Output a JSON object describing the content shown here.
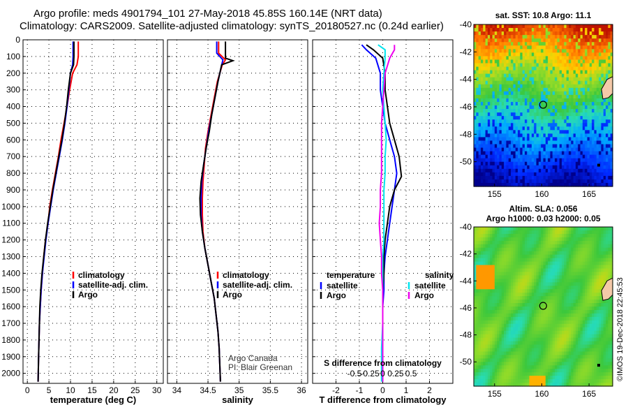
{
  "title_line1": "Argo profile: meds 4901794_101 27-May-2018 45.85S 160.14E (NRT data)",
  "title_line2": "Climatology: CARS2009. Satellite-adjusted climatology: synTS_20180527.nc (0.24d earlier)",
  "credit_line1": "Argo Canada",
  "credit_line2": "PI: Blair Greenan",
  "watermark": "©IMOS 19-Dec-2018 22:45:53",
  "colors": {
    "argo": "#000000",
    "climatology": "#ff0000",
    "satellite_t": "#0000ff",
    "satellite_s": "#00e5ee",
    "argo_s_diff": "#ee00ee"
  },
  "chart_data": [
    {
      "type": "line",
      "id": "temperature",
      "xlabel": "temperature (deg C)",
      "ylim": [
        2060,
        0
      ],
      "xlim": [
        -1,
        31.5
      ],
      "xticks": [
        0,
        5,
        10,
        15,
        20,
        25,
        30
      ],
      "yticks": [
        0,
        100,
        200,
        300,
        400,
        500,
        600,
        700,
        800,
        900,
        1000,
        1100,
        1200,
        1300,
        1400,
        1500,
        1600,
        1700,
        1800,
        1900,
        2000
      ],
      "legend": [
        "climatology",
        "satellite-adj. clim.",
        "Argo"
      ],
      "series": [
        {
          "name": "climatology",
          "color": "red",
          "x": [
            11.8,
            11.8,
            11.5,
            10.5,
            9.8,
            9.2,
            8.5,
            7.8,
            7.2,
            6.5,
            5.8,
            5.2,
            4.8,
            4.2,
            3.8,
            3.5,
            3.2,
            3.0,
            2.8,
            2.7,
            2.6,
            2.5
          ],
          "y": [
            10,
            100,
            150,
            200,
            300,
            400,
            500,
            600,
            700,
            800,
            900,
            1000,
            1100,
            1200,
            1300,
            1400,
            1500,
            1600,
            1700,
            1800,
            1900,
            2050
          ]
        },
        {
          "name": "satellite-adj. clim.",
          "color": "blue",
          "x": [
            10.6,
            10.6,
            10.5,
            10.0,
            9.6,
            9.2,
            8.7,
            8.1,
            7.4,
            6.7,
            6.0,
            5.4,
            4.8,
            4.3,
            3.9,
            3.5,
            3.2,
            3.0,
            2.8,
            2.7,
            2.6,
            2.5
          ],
          "y": [
            10,
            100,
            150,
            200,
            300,
            400,
            500,
            600,
            700,
            800,
            900,
            1000,
            1100,
            1200,
            1300,
            1400,
            1500,
            1600,
            1700,
            1800,
            1900,
            2050
          ]
        },
        {
          "name": "Argo",
          "color": "black",
          "x": [
            10.8,
            10.8,
            10.7,
            10.0,
            9.5,
            9.1,
            8.6,
            8.0,
            7.3,
            6.6,
            5.9,
            5.3,
            4.7,
            4.2,
            3.8,
            3.4,
            3.1,
            2.9,
            2.8,
            2.7,
            2.6,
            2.5
          ],
          "y": [
            10,
            100,
            150,
            200,
            300,
            400,
            500,
            600,
            700,
            800,
            900,
            1000,
            1100,
            1200,
            1300,
            1400,
            1500,
            1600,
            1700,
            1800,
            1900,
            2050
          ]
        }
      ]
    },
    {
      "type": "line",
      "id": "salinity",
      "xlabel": "salinity",
      "ylim": [
        2060,
        0
      ],
      "xlim": [
        33.85,
        36.1
      ],
      "xticks": [
        34,
        34.5,
        35,
        35.5,
        36
      ],
      "legend": [
        "climatology",
        "satellite-adj. clim.",
        "Argo"
      ],
      "series": [
        {
          "name": "climatology",
          "color": "red",
          "x": [
            34.67,
            34.67,
            34.78,
            34.73,
            34.65,
            34.6,
            34.55,
            34.5,
            34.46,
            34.44,
            34.42,
            34.41,
            34.41,
            34.42,
            34.45,
            34.5,
            34.55,
            34.6,
            34.63,
            34.66,
            34.68,
            34.7
          ],
          "y": [
            10,
            80,
            120,
            150,
            250,
            350,
            450,
            550,
            650,
            750,
            850,
            950,
            1050,
            1150,
            1250,
            1350,
            1450,
            1550,
            1650,
            1750,
            1850,
            2050
          ]
        },
        {
          "name": "satellite-adj. clim.",
          "color": "blue",
          "x": [
            34.64,
            34.64,
            34.74,
            34.72,
            34.66,
            34.61,
            34.56,
            34.51,
            34.47,
            34.43,
            34.4,
            34.39,
            34.39,
            34.41,
            34.45,
            34.5,
            34.55,
            34.6,
            34.63,
            34.66,
            34.68,
            34.7
          ],
          "y": [
            10,
            80,
            120,
            150,
            250,
            350,
            450,
            550,
            650,
            750,
            850,
            950,
            1050,
            1150,
            1250,
            1350,
            1450,
            1550,
            1650,
            1750,
            1850,
            2050
          ]
        },
        {
          "name": "Argo",
          "color": "black",
          "x": [
            34.78,
            34.78,
            34.9,
            34.72,
            34.66,
            34.61,
            34.56,
            34.52,
            34.47,
            34.43,
            34.39,
            34.37,
            34.38,
            34.41,
            34.45,
            34.5,
            34.55,
            34.6,
            34.63,
            34.66,
            34.68,
            34.7
          ],
          "y": [
            10,
            110,
            125,
            150,
            250,
            350,
            450,
            550,
            650,
            750,
            850,
            950,
            1050,
            1150,
            1250,
            1350,
            1450,
            1550,
            1650,
            1750,
            1850,
            2050
          ]
        }
      ]
    },
    {
      "type": "line",
      "id": "difference",
      "xlabel": "T difference from climatology",
      "xlabel2": "S difference from climatology",
      "s_ticks": [
        "-0.5",
        "-0.25",
        "0",
        "0.25",
        "0.5"
      ],
      "ylim": [
        2060,
        0
      ],
      "xlim": [
        -3,
        3
      ],
      "xticks": [
        -2,
        -1,
        0,
        1,
        2
      ],
      "legend_t_title": "temperature",
      "legend_s_title": "salinity",
      "legend_t": [
        "satellite",
        "Argo"
      ],
      "legend_s": [
        "satellite",
        "Argo"
      ],
      "series": [
        {
          "name": "T satellite",
          "color": "blue",
          "x": [
            -0.9,
            -0.7,
            -0.3,
            -0.1,
            -0.1,
            0.0,
            0.1,
            0.3,
            0.5,
            0.6,
            0.5,
            0.4,
            0.3,
            0.2,
            0.1,
            0.05,
            0.05,
            0.0,
            0.0,
            0.0,
            0.0
          ],
          "y": [
            30,
            60,
            110,
            200,
            300,
            400,
            500,
            600,
            700,
            800,
            900,
            1000,
            1100,
            1200,
            1300,
            1400,
            1500,
            1600,
            1700,
            1850,
            2050
          ]
        },
        {
          "name": "T Argo",
          "color": "black",
          "x": [
            -0.7,
            -0.4,
            0.0,
            0.1,
            0.1,
            0.2,
            0.3,
            0.5,
            0.7,
            0.8,
            0.5,
            0.3,
            0.2,
            0.1,
            0.05,
            0.05,
            0.0,
            0.0,
            0.0,
            0.0,
            0.0
          ],
          "y": [
            30,
            60,
            110,
            200,
            300,
            400,
            500,
            600,
            700,
            820,
            900,
            1000,
            1100,
            1200,
            1300,
            1400,
            1500,
            1600,
            1700,
            1850,
            2050
          ]
        },
        {
          "name": "S satellite",
          "color": "cyan",
          "x": [
            -0.2,
            0.1,
            0.1,
            0.05,
            0.0,
            0.05,
            0.1,
            0.15,
            0.1,
            0.1,
            0.05,
            0.05,
            0.05,
            0.05,
            0.0,
            0.0,
            0.0,
            0.0,
            0.0,
            -0.05,
            -0.05
          ],
          "y": [
            30,
            60,
            110,
            200,
            300,
            400,
            500,
            600,
            700,
            800,
            900,
            1000,
            1100,
            1200,
            1300,
            1400,
            1500,
            1600,
            1700,
            1850,
            2050
          ]
        },
        {
          "name": "S Argo",
          "color": "magenta",
          "x": [
            0.5,
            0.5,
            0.3,
            0.1,
            0.05,
            0.0,
            -0.05,
            -0.05,
            -0.05,
            -0.05,
            -0.1,
            -0.1,
            -0.15,
            -0.1,
            -0.05,
            -0.05,
            0.0,
            0.0,
            0.0,
            0.0,
            0.0
          ],
          "y": [
            30,
            60,
            110,
            200,
            300,
            400,
            500,
            600,
            700,
            800,
            900,
            1000,
            1100,
            1200,
            1300,
            1400,
            1500,
            1600,
            1700,
            1850,
            2050
          ]
        }
      ]
    },
    {
      "type": "heatmap",
      "id": "sst_map",
      "title": "sat. SST: 10.8 Argo: 11.1",
      "xticks": [
        155,
        160,
        165
      ],
      "yticks": [
        -40,
        -42,
        -44,
        -46,
        -48,
        -50
      ],
      "xlim": [
        152.8,
        167.5
      ],
      "ylim": [
        -51.8,
        -40
      ],
      "argo_location": [
        160.14,
        -45.85
      ]
    },
    {
      "type": "heatmap",
      "id": "sla_map",
      "title": "Altim. SLA: 0.056",
      "subtitle": "Argo h1000: 0.03 h2000: 0.05",
      "xticks": [
        155,
        160,
        165
      ],
      "yticks": [
        -40,
        -42,
        -44,
        -46,
        -48,
        -50
      ],
      "xlim": [
        152.8,
        167.5
      ],
      "ylim": [
        -51.8,
        -40
      ],
      "argo_location": [
        160.14,
        -45.85
      ]
    }
  ]
}
